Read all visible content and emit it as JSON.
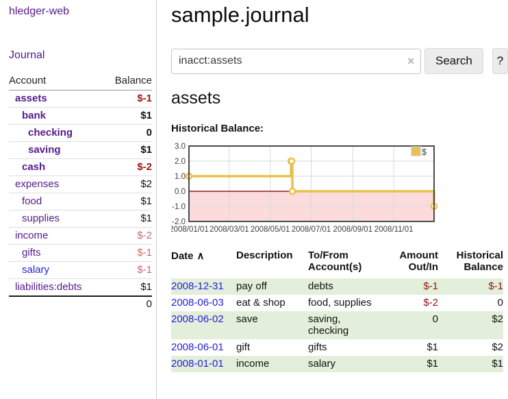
{
  "app": {
    "title": "hledger-web"
  },
  "nav": {
    "journal_label": "Journal"
  },
  "sidebar": {
    "headers": {
      "account": "Account",
      "balance": "Balance"
    },
    "accounts": [
      {
        "name": "assets",
        "balance": "$-1",
        "level": 1,
        "bold": true,
        "balance_class": "neg-strong"
      },
      {
        "name": "bank",
        "balance": "$1",
        "level": 2,
        "bold": true,
        "balance_class": ""
      },
      {
        "name": "checking",
        "balance": "0",
        "level": 3,
        "bold": true,
        "balance_class": ""
      },
      {
        "name": "saving",
        "balance": "$1",
        "level": 3,
        "bold": true,
        "balance_class": ""
      },
      {
        "name": "cash",
        "balance": "$-2",
        "level": 2,
        "bold": true,
        "balance_class": "neg-strong"
      },
      {
        "name": "expenses",
        "balance": "$2",
        "level": 1,
        "bold": false,
        "balance_class": ""
      },
      {
        "name": "food",
        "balance": "$1",
        "level": 2,
        "bold": false,
        "balance_class": ""
      },
      {
        "name": "supplies",
        "balance": "$1",
        "level": 2,
        "bold": false,
        "balance_class": ""
      },
      {
        "name": "income",
        "balance": "$-2",
        "level": 1,
        "bold": false,
        "balance_class": "neg-light"
      },
      {
        "name": "gifts",
        "balance": "$-1",
        "level": 2,
        "bold": false,
        "balance_class": "neg-light"
      },
      {
        "name": "salary",
        "balance": "$-1",
        "level": 2,
        "bold": false,
        "balance_class": "neg-light",
        "link_class": "blue"
      },
      {
        "name": "liabilities:debts",
        "balance": "$1",
        "level": 1,
        "bold": false,
        "balance_class": ""
      }
    ],
    "total": "0"
  },
  "main": {
    "title": "sample.journal",
    "search": {
      "value": "inacct:assets",
      "clear_icon": "✕",
      "button_label": "Search",
      "help_label": "?"
    },
    "account_heading": "assets",
    "chart_label": "Historical Balance:"
  },
  "chart_data": {
    "type": "line",
    "step": true,
    "title": "Historical Balance",
    "series": [
      {
        "name": "$",
        "points": [
          [
            "2008-01-01",
            1
          ],
          [
            "2008-06-01",
            2
          ],
          [
            "2008-06-02",
            2
          ],
          [
            "2008-06-03",
            0
          ],
          [
            "2008-12-31",
            -1
          ]
        ]
      }
    ],
    "ylim": [
      -2.0,
      3.0
    ],
    "yticks": [
      "3.0",
      "2.0",
      "1.0",
      "0.0",
      "-1.0",
      "-2.0"
    ],
    "xticks": [
      "2008/01/01",
      "2008/03/01",
      "2008/05/01",
      "2008/07/01",
      "2008/09/01",
      "2008/11/01"
    ],
    "legend": {
      "label": "$",
      "position": "top-right"
    },
    "grid": true,
    "colors": {
      "line": "#e8c14a",
      "marker_fill": "#ffffff",
      "negative_fill": "#fbdbdb",
      "zero_line": "#8b1a1a",
      "border": "#4a4a4a",
      "gridline": "#d9d9d9"
    }
  },
  "register": {
    "headers": {
      "date": "Date",
      "sort_icon": "∧",
      "description": "Description",
      "accounts": "To/From Account(s)",
      "amount": "Amount Out/In",
      "balance": "Historical Balance"
    },
    "rows": [
      {
        "date": "2008-12-31",
        "description": "pay off",
        "accounts": "debts",
        "amount": "$-1",
        "balance": "$-1",
        "amount_neg": true,
        "balance_neg": true
      },
      {
        "date": "2008-06-03",
        "description": "eat & shop",
        "accounts": "food, supplies",
        "amount": "$-2",
        "balance": "0",
        "amount_neg": true,
        "balance_neg": false
      },
      {
        "date": "2008-06-02",
        "description": "save",
        "accounts": "saving, checking",
        "amount": "0",
        "balance": "$2",
        "amount_neg": false,
        "balance_neg": false
      },
      {
        "date": "2008-06-01",
        "description": "gift",
        "accounts": "gifts",
        "amount": "$1",
        "balance": "$2",
        "amount_neg": false,
        "balance_neg": false
      },
      {
        "date": "2008-01-01",
        "description": "income",
        "accounts": "salary",
        "amount": "$1",
        "balance": "$1",
        "amount_neg": false,
        "balance_neg": false
      }
    ]
  }
}
